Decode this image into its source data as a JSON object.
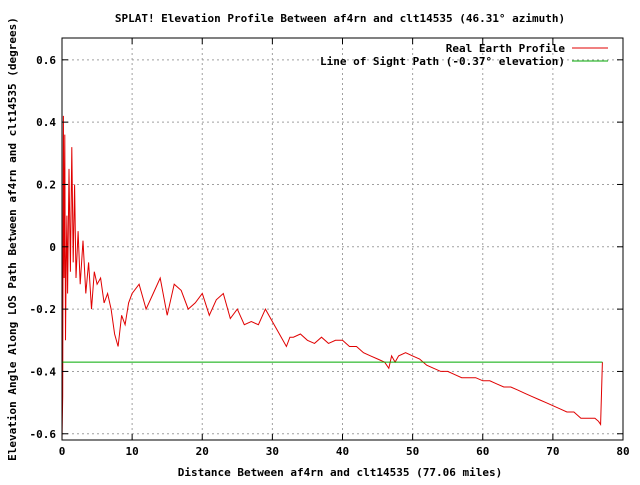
{
  "chart_data": {
    "type": "line",
    "title": "SPLAT! Elevation Profile Between af4rn and clt14535 (46.31° azimuth)",
    "xlabel": "Distance Between af4rn and clt14535 (77.06 miles)",
    "ylabel": "Elevation Angle Along LOS Path Between af4rn and clt14535 (degrees)",
    "xlim": [
      0,
      80
    ],
    "ylim": [
      -0.62,
      0.67
    ],
    "x_ticks": [
      0,
      10,
      20,
      30,
      40,
      50,
      60,
      70,
      80
    ],
    "y_ticks": [
      -0.6,
      -0.4,
      -0.2,
      0,
      0.2,
      0.4,
      0.6
    ],
    "x_tick_labels": [
      "0",
      "10",
      "20",
      "30",
      "40",
      "50",
      "60",
      "70",
      "80"
    ],
    "y_tick_labels": [
      "-0.6",
      "-0.4",
      "-0.2",
      "0",
      "0.2",
      "0.4",
      "0.6"
    ],
    "grid": true,
    "legend_position": "top-right",
    "series": [
      {
        "name": "Real Earth Profile",
        "color": "#e00000",
        "x": [
          0.0,
          0.1,
          0.2,
          0.3,
          0.4,
          0.5,
          0.6,
          0.7,
          0.8,
          0.9,
          1.0,
          1.2,
          1.4,
          1.6,
          1.8,
          2.0,
          2.3,
          2.6,
          3.0,
          3.4,
          3.8,
          4.2,
          4.6,
          5.0,
          5.5,
          6.0,
          6.5,
          7.0,
          7.5,
          8.0,
          8.5,
          9.0,
          9.5,
          10.0,
          11.0,
          12.0,
          13.0,
          14.0,
          15.0,
          16.0,
          17.0,
          18.0,
          19.0,
          20.0,
          21.0,
          22.0,
          23.0,
          24.0,
          25.0,
          26.0,
          27.0,
          28.0,
          29.0,
          30.0,
          31.0,
          32.0,
          32.5,
          33.0,
          34.0,
          35.0,
          36.0,
          37.0,
          38.0,
          39.0,
          40.0,
          41.0,
          42.0,
          43.0,
          44.0,
          45.0,
          46.0,
          46.6,
          47.0,
          47.5,
          48.0,
          49.0,
          50.0,
          51.0,
          52.0,
          53.0,
          54.0,
          55.0,
          56.0,
          57.0,
          58.0,
          59.0,
          60.0,
          61.0,
          62.0,
          63.0,
          64.0,
          65.0,
          66.0,
          67.0,
          68.0,
          69.0,
          70.0,
          71.0,
          72.0,
          73.0,
          74.0,
          75.0,
          76.0,
          76.5,
          76.8,
          77.06
        ],
        "y": [
          -0.62,
          -0.48,
          0.42,
          -0.1,
          0.36,
          -0.3,
          -0.05,
          0.1,
          -0.15,
          0.05,
          0.25,
          -0.08,
          0.32,
          -0.05,
          0.2,
          -0.1,
          0.05,
          -0.12,
          0.02,
          -0.15,
          -0.05,
          -0.2,
          -0.08,
          -0.12,
          -0.1,
          -0.18,
          -0.15,
          -0.2,
          -0.28,
          -0.32,
          -0.22,
          -0.25,
          -0.18,
          -0.15,
          -0.12,
          -0.2,
          -0.15,
          -0.1,
          -0.22,
          -0.12,
          -0.14,
          -0.2,
          -0.18,
          -0.15,
          -0.22,
          -0.17,
          -0.15,
          -0.23,
          -0.2,
          -0.25,
          -0.24,
          -0.25,
          -0.2,
          -0.24,
          -0.28,
          -0.32,
          -0.29,
          -0.29,
          -0.28,
          -0.3,
          -0.31,
          -0.29,
          -0.31,
          -0.3,
          -0.3,
          -0.32,
          -0.32,
          -0.34,
          -0.35,
          -0.36,
          -0.37,
          -0.39,
          -0.35,
          -0.37,
          -0.35,
          -0.34,
          -0.35,
          -0.36,
          -0.38,
          -0.39,
          -0.4,
          -0.4,
          -0.41,
          -0.42,
          -0.42,
          -0.42,
          -0.43,
          -0.43,
          -0.44,
          -0.45,
          -0.45,
          -0.46,
          -0.47,
          -0.48,
          -0.49,
          -0.5,
          -0.51,
          -0.52,
          -0.53,
          -0.53,
          -0.55,
          -0.55,
          -0.55,
          -0.56,
          -0.57,
          -0.37
        ]
      },
      {
        "name": "Line of Sight Path (-0.37° elevation)",
        "color": "#00aa00",
        "x": [
          0,
          77.06
        ],
        "y": [
          -0.37,
          -0.37
        ]
      }
    ]
  }
}
